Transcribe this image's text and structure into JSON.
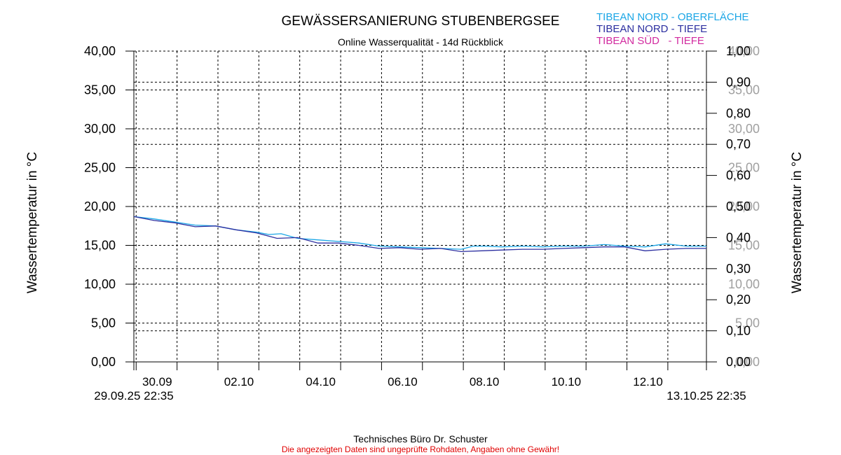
{
  "chart_data": {
    "type": "line",
    "title": "GEWÄSSERSANIERUNG STUBENBERGSEE",
    "subtitle": "Online Wasserqualität - 14d Rückblick",
    "ylabel_left": "Wassertemperatur in °C",
    "ylabel_right": "Wassertemperatur in °C",
    "ylim": [
      0,
      40
    ],
    "yticks": [
      "0,00",
      "5,00",
      "10,00",
      "15,00",
      "20,00",
      "25,00",
      "30,00",
      "35,00",
      "40,00"
    ],
    "ylim_right": [
      0,
      1
    ],
    "yticks_right": [
      "0,00",
      "0,10",
      "0,20",
      "0,30",
      "0,40",
      "0,50",
      "0,60",
      "0,70",
      "0,80",
      "0,90",
      "1,00"
    ],
    "yticks_right_grey": [
      "0,00",
      "5,00",
      "10,00",
      "15,00",
      "20,00",
      "25,00",
      "30,00",
      "35,00",
      "40,00"
    ],
    "xlim": [
      0,
      14
    ],
    "x_unit": "days after 29.09.25 22:35",
    "xticks": [
      {
        "x": 0.056,
        "label": "30.09"
      },
      {
        "x": 2.056,
        "label": "02.10"
      },
      {
        "x": 4.056,
        "label": "04.10"
      },
      {
        "x": 6.056,
        "label": "06.10"
      },
      {
        "x": 8.056,
        "label": "08.10"
      },
      {
        "x": 10.056,
        "label": "10.10"
      },
      {
        "x": 12.056,
        "label": "12.10"
      }
    ],
    "start_label": "29.09.25 22:35",
    "end_label": "13.10.25 22:35",
    "grid": true,
    "legend_position": "top-right",
    "series": [
      {
        "name": "TIBEAN NORD - OBERFLÄCHE",
        "color": "#1ba6e6",
        "x": [
          0,
          0.5,
          1,
          1.5,
          2,
          2.5,
          3,
          3.3,
          3.6,
          4,
          4.5,
          5,
          5.5,
          6,
          6.5,
          7,
          7.5,
          8,
          8.3,
          8.6,
          9,
          9.5,
          10,
          10.5,
          11,
          11.5,
          12,
          12.5,
          13,
          13.5,
          14
        ],
        "y": [
          18.7,
          18.4,
          18.0,
          17.6,
          17.5,
          17.0,
          16.7,
          16.4,
          16.5,
          15.9,
          15.7,
          15.5,
          15.3,
          14.9,
          14.8,
          14.7,
          14.6,
          14.5,
          14.9,
          14.9,
          14.8,
          14.9,
          14.8,
          14.9,
          14.9,
          15.1,
          14.9,
          14.8,
          15.2,
          14.9,
          14.9
        ]
      },
      {
        "name": "TIBEAN NORD - TIEFE",
        "color": "#2c2fa0",
        "x": [
          0,
          0.5,
          1,
          1.5,
          2,
          2.5,
          3,
          3.5,
          4,
          4.5,
          5,
          5.5,
          6,
          6.5,
          7,
          7.5,
          8,
          8.5,
          9,
          9.5,
          10,
          10.5,
          11,
          11.5,
          12,
          12.5,
          13,
          13.5,
          14
        ],
        "y": [
          18.7,
          18.2,
          17.9,
          17.4,
          17.5,
          17.0,
          16.6,
          15.9,
          16.0,
          15.3,
          15.3,
          15.0,
          14.6,
          14.7,
          14.5,
          14.6,
          14.2,
          14.3,
          14.4,
          14.5,
          14.5,
          14.6,
          14.7,
          14.8,
          14.8,
          14.3,
          14.5,
          14.6,
          14.6
        ]
      },
      {
        "name": "TIBEAN SÜD   - TIEFE",
        "color": "#d22ba0",
        "x": [],
        "y": []
      }
    ]
  },
  "footer": {
    "credit": "Technisches Büro Dr. Schuster",
    "disclaimer": "Die angezeigten Daten sind ungeprüfte Rohdaten, Angaben ohne Gewähr!"
  }
}
